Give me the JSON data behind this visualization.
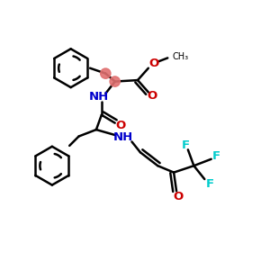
{
  "bg_color": "#ffffff",
  "bond_color": "#000000",
  "bond_width": 1.8,
  "N_color": "#0000cc",
  "O_color": "#cc0000",
  "F_color": "#00cccc",
  "highlight_color": "#e07070",
  "fig_width": 3.0,
  "fig_height": 3.0,
  "dpi": 100,
  "xlim": [
    0,
    10
  ],
  "ylim": [
    0,
    10
  ]
}
